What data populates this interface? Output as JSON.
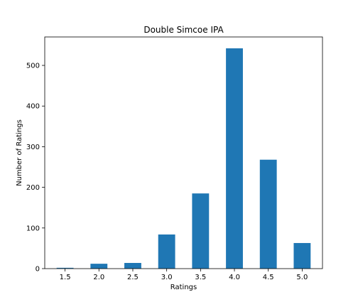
{
  "chart_data": {
    "type": "bar",
    "title": "Double Simcoe IPA",
    "xlabel": "Ratings",
    "ylabel": "Number of Ratings",
    "categories": [
      "1.5",
      "2.0",
      "2.5",
      "3.0",
      "3.5",
      "4.0",
      "4.5",
      "5.0"
    ],
    "values": [
      2,
      12,
      14,
      84,
      185,
      542,
      268,
      63
    ],
    "ylim": [
      0,
      570
    ],
    "yticks": [
      0,
      100,
      200,
      300,
      400,
      500
    ],
    "bar_color": "#1f77b4",
    "grid": false,
    "legend": "none"
  }
}
